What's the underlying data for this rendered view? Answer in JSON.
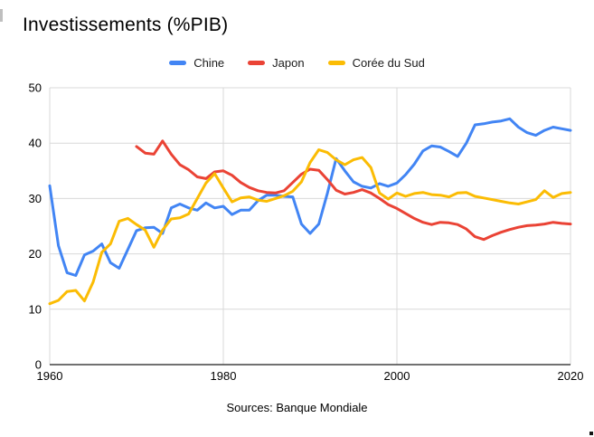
{
  "title": "Investissements (%PIB)",
  "source": "Sources: Banque Mondiale",
  "chart_data": {
    "type": "line",
    "title": "Investissements (%PIB)",
    "xlabel": "",
    "ylabel": "",
    "ylim": [
      0,
      50
    ],
    "yticks": [
      0,
      10,
      20,
      30,
      40,
      50
    ],
    "xticks": [
      1960,
      1980,
      2000,
      2020
    ],
    "grid": true,
    "legend_position": "top",
    "grid_color": "#d9d9d9",
    "axis_color": "#424242",
    "text_color": "#000000",
    "years": [
      1960,
      1961,
      1962,
      1963,
      1964,
      1965,
      1966,
      1967,
      1968,
      1969,
      1970,
      1971,
      1972,
      1973,
      1974,
      1975,
      1976,
      1977,
      1978,
      1979,
      1980,
      1981,
      1982,
      1983,
      1984,
      1985,
      1986,
      1987,
      1988,
      1989,
      1990,
      1991,
      1992,
      1993,
      1994,
      1995,
      1996,
      1997,
      1998,
      1999,
      2000,
      2001,
      2002,
      2003,
      2004,
      2005,
      2006,
      2007,
      2008,
      2009,
      2010,
      2011,
      2012,
      2013,
      2014,
      2015,
      2016,
      2017,
      2018,
      2019,
      2020
    ],
    "series": [
      {
        "name": "Chine",
        "color": "#4285F4",
        "values": [
          32.3,
          21.5,
          16.6,
          16.1,
          19.8,
          20.5,
          21.8,
          18.4,
          17.4,
          20.8,
          24.2,
          24.7,
          24.8,
          23.7,
          28.3,
          29.0,
          28.3,
          27.9,
          29.2,
          28.3,
          28.6,
          27.1,
          27.9,
          27.9,
          29.6,
          30.6,
          30.6,
          30.4,
          30.3,
          25.4,
          23.7,
          25.4,
          31.0,
          37.2,
          35.0,
          33.0,
          32.2,
          31.9,
          32.7,
          32.2,
          32.8,
          34.3,
          36.2,
          38.6,
          39.5,
          39.3,
          38.5,
          37.6,
          40.0,
          43.3,
          43.5,
          43.8,
          44.0,
          44.4,
          42.9,
          41.9,
          41.4,
          42.3,
          42.9,
          42.6,
          42.3
        ]
      },
      {
        "name": "Japon",
        "color": "#EA4335",
        "values": [
          null,
          null,
          null,
          null,
          null,
          null,
          null,
          null,
          null,
          null,
          39.4,
          38.2,
          38.0,
          40.4,
          38.0,
          36.1,
          35.2,
          33.9,
          33.6,
          34.8,
          35.0,
          34.2,
          32.9,
          32.0,
          31.4,
          31.1,
          31.0,
          31.4,
          32.9,
          34.4,
          35.3,
          35.1,
          33.4,
          31.5,
          30.8,
          31.1,
          31.6,
          31.0,
          30.0,
          28.9,
          28.2,
          27.3,
          26.4,
          25.7,
          25.3,
          25.7,
          25.6,
          25.3,
          24.5,
          23.1,
          22.6,
          23.3,
          23.9,
          24.4,
          24.8,
          25.1,
          25.2,
          25.4,
          25.7,
          25.5,
          25.4
        ]
      },
      {
        "name": "Corée du Sud",
        "color": "#FBBC04",
        "values": [
          11.0,
          11.6,
          13.2,
          13.4,
          11.5,
          14.9,
          20.3,
          21.8,
          25.9,
          26.4,
          25.3,
          24.3,
          21.2,
          24.3,
          26.3,
          26.5,
          27.2,
          30.0,
          32.8,
          34.5,
          31.9,
          29.4,
          30.1,
          30.3,
          29.7,
          29.5,
          30.0,
          30.5,
          31.3,
          33.0,
          36.5,
          38.8,
          38.3,
          37.0,
          36.1,
          37.0,
          37.4,
          35.6,
          31.0,
          29.9,
          31.0,
          30.4,
          30.9,
          31.1,
          30.7,
          30.6,
          30.3,
          31.0,
          31.1,
          30.4,
          30.1,
          29.8,
          29.5,
          29.2,
          29.0,
          29.4,
          29.8,
          31.4,
          30.2,
          30.9,
          31.1
        ]
      }
    ]
  }
}
